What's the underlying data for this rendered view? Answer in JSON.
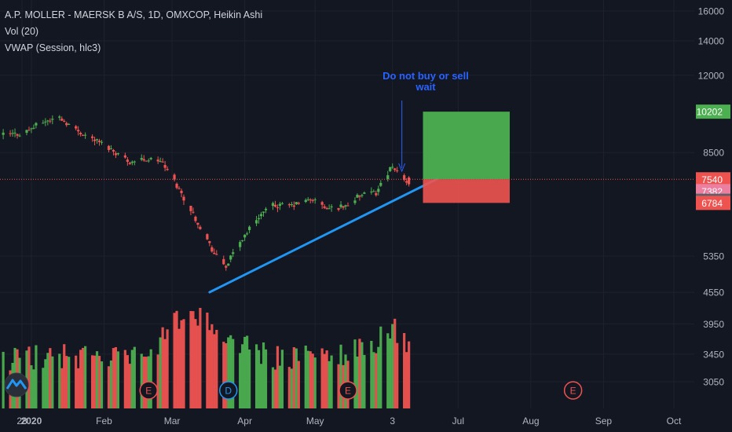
{
  "legend": {
    "symbol": "A.P. MOLLER - MAERSK B A/S, 1D, OMXCOP, Heikin Ashi",
    "volume": "Vol (20)",
    "vwap": "VWAP (Session, hlc3)"
  },
  "annotation": {
    "line1": "Do not buy or sell",
    "line2": "wait"
  },
  "colors": {
    "background": "#131722",
    "grid": "#1e222d",
    "up": "#26a69a",
    "up_volume": "#4caf50",
    "down": "#ef5350",
    "trendline": "#2196f3",
    "annotation": "#2962ff",
    "profit_zone": "#4caf50",
    "loss_zone": "#ef5350"
  },
  "chart_data": {
    "type": "candlestick",
    "scale": "log",
    "ylim": [
      2750,
      16500
    ],
    "y_ticks": [
      "16000",
      "14000",
      "12000",
      "10202",
      "8500",
      "7540",
      "7382",
      "7374",
      "6784",
      "5350",
      "4550",
      "3950",
      "3450",
      "3050"
    ],
    "x_ticks": [
      "28",
      "2020",
      "Feb",
      "Mar",
      "Apr",
      "May",
      "3",
      "Jul",
      "Aug",
      "Sep",
      "Oct"
    ],
    "price_labels": [
      {
        "label": "10202",
        "value": 10202,
        "color": "#4caf50"
      },
      {
        "label": "7540",
        "value": 7540,
        "color": "#ef5350"
      },
      {
        "label": "7382",
        "value": 7382,
        "color": "#ec7ea0"
      },
      {
        "label": "7374",
        "value": 7374,
        "color": "#5d606b"
      },
      {
        "label": "6784",
        "value": 6784,
        "color": "#ef5350"
      }
    ],
    "series": [
      {
        "name": "Heikin Ashi",
        "anchors": [
          {
            "date": "2019-12-20",
            "close": 9200
          },
          {
            "date": "2019-12-28",
            "close": 9250
          },
          {
            "date": "2020-01-06",
            "close": 9750
          },
          {
            "date": "2020-01-13",
            "close": 9950
          },
          {
            "date": "2020-01-20",
            "close": 9400
          },
          {
            "date": "2020-02-01",
            "close": 8800
          },
          {
            "date": "2020-02-12",
            "close": 8150
          },
          {
            "date": "2020-02-18",
            "close": 8250
          },
          {
            "date": "2020-02-25",
            "close": 8200
          },
          {
            "date": "2020-03-01",
            "close": 7600
          },
          {
            "date": "2020-03-07",
            "close": 6800
          },
          {
            "date": "2020-03-13",
            "close": 6100
          },
          {
            "date": "2020-03-19",
            "close": 5400
          },
          {
            "date": "2020-03-24",
            "close": 5100
          },
          {
            "date": "2020-03-30",
            "close": 5700
          },
          {
            "date": "2020-04-07",
            "close": 6400
          },
          {
            "date": "2020-04-13",
            "close": 6700
          },
          {
            "date": "2020-04-21",
            "close": 6700
          },
          {
            "date": "2020-04-30",
            "close": 6900
          },
          {
            "date": "2020-05-06",
            "close": 6600
          },
          {
            "date": "2020-05-14",
            "close": 6700
          },
          {
            "date": "2020-05-20",
            "close": 7000
          },
          {
            "date": "2020-05-27",
            "close": 7100
          },
          {
            "date": "2020-06-02",
            "close": 7900
          },
          {
            "date": "2020-06-06",
            "close": 7800
          },
          {
            "date": "2020-06-10",
            "close": 7374
          }
        ]
      },
      {
        "name": "Vol (20)",
        "anchors": [
          {
            "date": "2019-12-20",
            "value": 3300
          },
          {
            "date": "2020-01-10",
            "value": 3350
          },
          {
            "date": "2020-02-20",
            "value": 3300
          },
          {
            "date": "2020-03-05",
            "value": 4000
          },
          {
            "date": "2020-03-15",
            "value": 3900
          },
          {
            "date": "2020-03-25",
            "value": 3600
          },
          {
            "date": "2020-04-15",
            "value": 3300
          },
          {
            "date": "2020-05-10",
            "value": 3350
          },
          {
            "date": "2020-05-25",
            "value": 3500
          },
          {
            "date": "2020-06-03",
            "value": 3800
          },
          {
            "date": "2020-06-10",
            "value": 3400
          }
        ]
      }
    ],
    "trendline": {
      "from": {
        "date": "2020-03-17",
        "price": 4550
      },
      "to": {
        "date": "2020-06-22",
        "price": 7550
      }
    },
    "position": {
      "start": "2020-06-16",
      "end": "2020-07-23",
      "target": 10202,
      "entry": 7540,
      "stop": 6784
    },
    "current_price": 7540,
    "earnings_markers": [
      {
        "label": "E",
        "date": "2020-02-20",
        "color": "#ef5350"
      },
      {
        "label": "D",
        "date": "2020-03-25",
        "color": "#2196f3"
      },
      {
        "label": "E",
        "date": "2020-05-15",
        "color": "#ef5350"
      },
      {
        "label": "E",
        "date": "2020-08-19",
        "color": "#ef5350"
      }
    ]
  }
}
